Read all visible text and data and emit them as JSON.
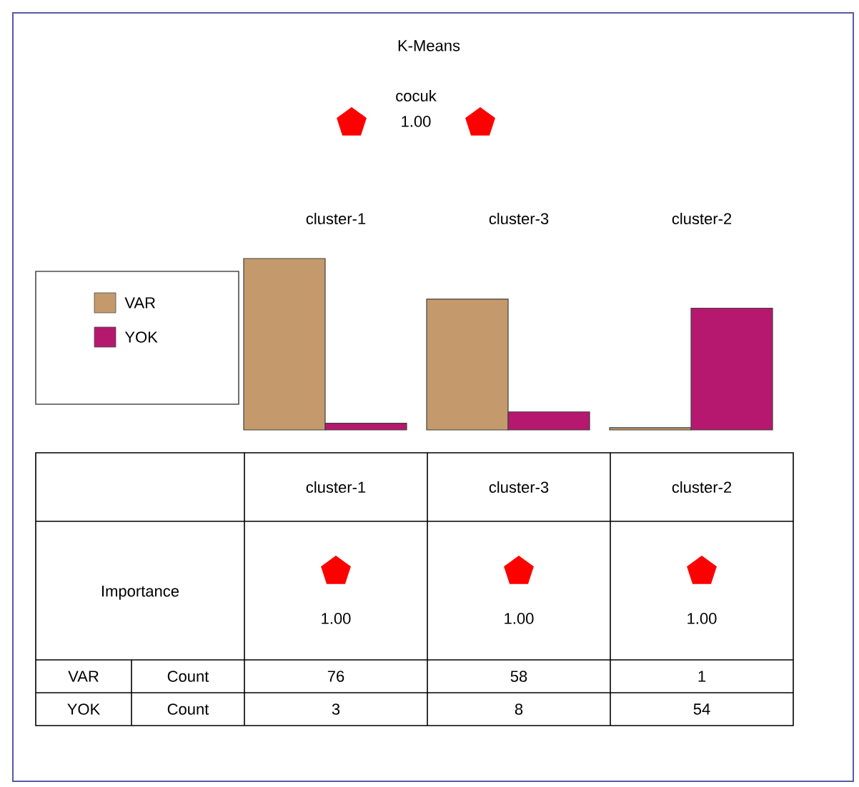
{
  "chart_data": {
    "type": "bar",
    "title": "K-Means",
    "subtitle": "cocuk",
    "categories": [
      "cluster-1",
      "cluster-3",
      "cluster-2"
    ],
    "series": [
      {
        "name": "VAR",
        "color": "#c49a6c",
        "values": [
          76,
          58,
          1
        ]
      },
      {
        "name": "YOK",
        "color": "#b5186e",
        "values": [
          3,
          8,
          54
        ]
      }
    ],
    "annotations": [
      "1.00",
      "Importance",
      "1.00",
      "1.00",
      "1.00",
      "Count",
      "Count"
    ],
    "data_labels": true,
    "legend": "left"
  }
}
